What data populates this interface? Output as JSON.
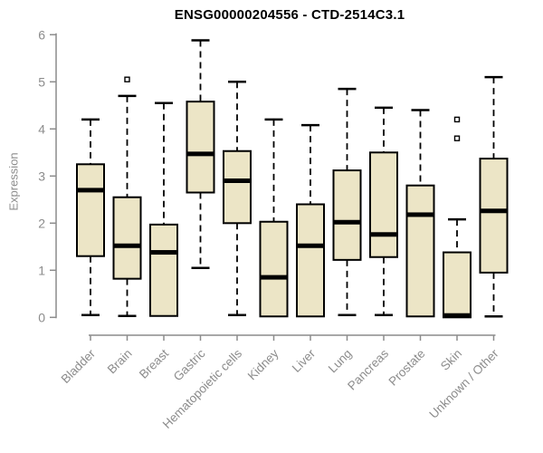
{
  "title": "ENSG00000204556 - CTD-2514C3.1",
  "chart_data": {
    "type": "boxplot",
    "title": "ENSG00000204556 - CTD-2514C3.1",
    "xlabel": "",
    "ylabel": "Expression",
    "ylim": [
      0,
      6
    ],
    "yticks": [
      0,
      1,
      2,
      3,
      4,
      5,
      6
    ],
    "grid": false,
    "legend": "none",
    "colors": {
      "box_fill": "#ECE5C6",
      "box_border": "#000000",
      "median": "#000000",
      "whisker": "#000000",
      "axis": "#8C8C8C",
      "tick_label": "#8C8C8C",
      "title": "#000000",
      "background": "#FFFFFF"
    },
    "categories": [
      "Bladder",
      "Brain",
      "Breast",
      "Gastric",
      "Hematopoietic cells",
      "Kidney",
      "Liver",
      "Lung",
      "Pancreas",
      "Prostate",
      "Skin",
      "Unknown / Other"
    ],
    "boxes": [
      {
        "category": "Bladder",
        "whisker_low": 0.05,
        "q1": 1.3,
        "median": 2.7,
        "q3": 3.25,
        "whisker_high": 4.2,
        "outliers": []
      },
      {
        "category": "Brain",
        "whisker_low": 0.03,
        "q1": 0.82,
        "median": 1.52,
        "q3": 2.55,
        "whisker_high": 4.7,
        "outliers": [
          5.05
        ]
      },
      {
        "category": "Breast",
        "whisker_low": 0.02,
        "q1": 0.03,
        "median": 1.38,
        "q3": 1.97,
        "whisker_high": 4.55,
        "outliers": []
      },
      {
        "category": "Gastric",
        "whisker_low": 1.05,
        "q1": 2.65,
        "median": 3.47,
        "q3": 4.58,
        "whisker_high": 5.88,
        "outliers": []
      },
      {
        "category": "Hematopoietic cells",
        "whisker_low": 0.05,
        "q1": 2.0,
        "median": 2.9,
        "q3": 3.53,
        "whisker_high": 5.0,
        "outliers": []
      },
      {
        "category": "Kidney",
        "whisker_low": 0.02,
        "q1": 0.02,
        "median": 0.85,
        "q3": 2.03,
        "whisker_high": 4.2,
        "outliers": []
      },
      {
        "category": "Liver",
        "whisker_low": 0.02,
        "q1": 0.02,
        "median": 1.52,
        "q3": 2.4,
        "whisker_high": 4.08,
        "outliers": []
      },
      {
        "category": "Lung",
        "whisker_low": 0.05,
        "q1": 1.22,
        "median": 2.02,
        "q3": 3.12,
        "whisker_high": 4.85,
        "outliers": []
      },
      {
        "category": "Pancreas",
        "whisker_low": 0.05,
        "q1": 1.28,
        "median": 1.76,
        "q3": 3.5,
        "whisker_high": 4.45,
        "outliers": []
      },
      {
        "category": "Prostate",
        "whisker_low": 0.02,
        "q1": 0.02,
        "median": 2.18,
        "q3": 2.8,
        "whisker_high": 4.4,
        "outliers": []
      },
      {
        "category": "Skin",
        "whisker_low": 0.0,
        "q1": 0.0,
        "median": 0.04,
        "q3": 1.38,
        "whisker_high": 2.08,
        "outliers": [
          4.2,
          3.8
        ]
      },
      {
        "category": "Unknown / Other",
        "whisker_low": 0.02,
        "q1": 0.95,
        "median": 2.26,
        "q3": 3.37,
        "whisker_high": 5.1,
        "outliers": []
      }
    ]
  }
}
